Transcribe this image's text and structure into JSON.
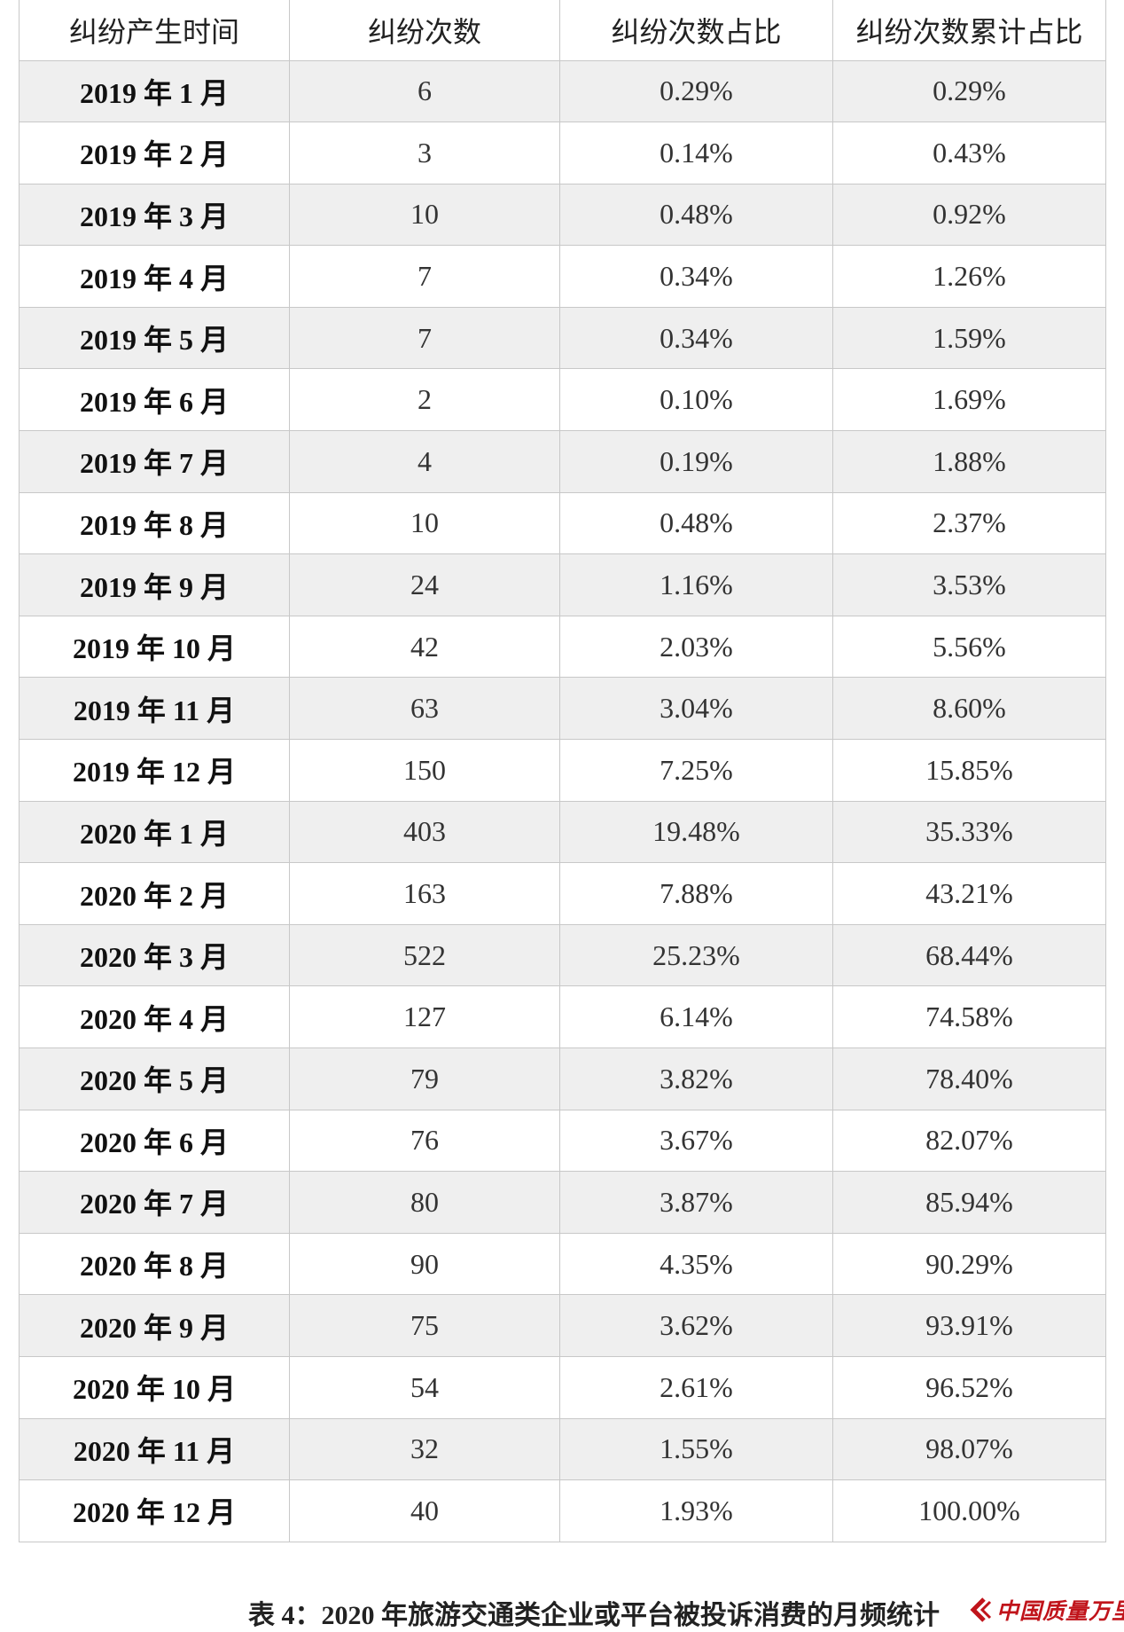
{
  "table": {
    "headers": [
      "纠纷产生时间",
      "纠纷次数",
      "纠纷次数占比",
      "纠纷次数累计占比"
    ],
    "rows": [
      [
        "2019 年 1 月",
        "6",
        "0.29%",
        "0.29%"
      ],
      [
        "2019 年 2 月",
        "3",
        "0.14%",
        "0.43%"
      ],
      [
        "2019 年 3 月",
        "10",
        "0.48%",
        "0.92%"
      ],
      [
        "2019 年 4 月",
        "7",
        "0.34%",
        "1.26%"
      ],
      [
        "2019 年 5 月",
        "7",
        "0.34%",
        "1.59%"
      ],
      [
        "2019 年 6 月",
        "2",
        "0.10%",
        "1.69%"
      ],
      [
        "2019 年 7 月",
        "4",
        "0.19%",
        "1.88%"
      ],
      [
        "2019 年 8 月",
        "10",
        "0.48%",
        "2.37%"
      ],
      [
        "2019 年 9 月",
        "24",
        "1.16%",
        "3.53%"
      ],
      [
        "2019 年 10 月",
        "42",
        "2.03%",
        "5.56%"
      ],
      [
        "2019 年 11 月",
        "63",
        "3.04%",
        "8.60%"
      ],
      [
        "2019 年 12 月",
        "150",
        "7.25%",
        "15.85%"
      ],
      [
        "2020 年 1 月",
        "403",
        "19.48%",
        "35.33%"
      ],
      [
        "2020 年 2 月",
        "163",
        "7.88%",
        "43.21%"
      ],
      [
        "2020 年 3 月",
        "522",
        "25.23%",
        "68.44%"
      ],
      [
        "2020 年 4 月",
        "127",
        "6.14%",
        "74.58%"
      ],
      [
        "2020 年 5 月",
        "79",
        "3.82%",
        "78.40%"
      ],
      [
        "2020 年 6 月",
        "76",
        "3.67%",
        "82.07%"
      ],
      [
        "2020 年 7 月",
        "80",
        "3.87%",
        "85.94%"
      ],
      [
        "2020 年 8 月",
        "90",
        "4.35%",
        "90.29%"
      ],
      [
        "2020 年 9 月",
        "75",
        "3.62%",
        "93.91%"
      ],
      [
        "2020 年 10 月",
        "54",
        "2.61%",
        "96.52%"
      ],
      [
        "2020 年 11 月",
        "32",
        "1.55%",
        "98.07%"
      ],
      [
        "2020 年 12 月",
        "40",
        "1.93%",
        "100.00%"
      ]
    ]
  },
  "caption": "表 4：2020 年旅游交通类企业或平台被投诉消费的月频统计",
  "watermark": {
    "text": "中国质量万里行",
    "color": "#c0141b",
    "icon": "brand-chevron-icon"
  },
  "colors": {
    "row_shade": "#efefef",
    "grid": "#c8c8c8"
  }
}
